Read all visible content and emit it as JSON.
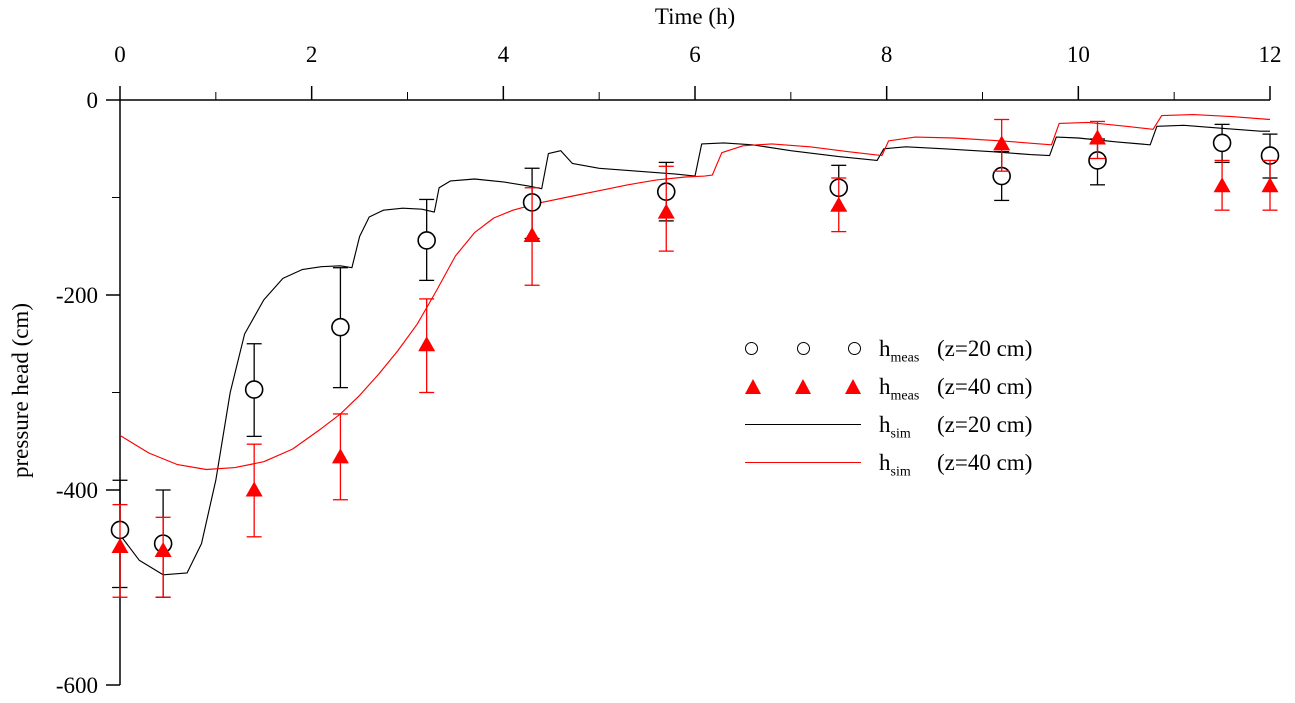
{
  "colors": {
    "black": "#000000",
    "red": "#ff0000",
    "background": "#ffffff"
  },
  "legend": {
    "items": [
      {
        "base": "h",
        "sub": "meas",
        "rest": "(z=20 cm)",
        "marker": "open-circles"
      },
      {
        "base": "h",
        "sub": "meas",
        "rest": "(z=40 cm)",
        "marker": "filled-triangles"
      },
      {
        "base": "h",
        "sub": "sim",
        "rest": "(z=20 cm)",
        "marker": "black-line"
      },
      {
        "base": "h",
        "sub": "sim",
        "rest": "(z=40 cm)",
        "marker": "red-line"
      }
    ]
  },
  "chart_data": {
    "type": "scatter",
    "title": "",
    "xlabel": "Time (h)",
    "ylabel": "pressure head (cm)",
    "xlim": [
      0,
      12
    ],
    "ylim": [
      -600,
      0
    ],
    "x_major_ticks": [
      0,
      2,
      4,
      6,
      8,
      10,
      12
    ],
    "x_minor_ticks": [
      1,
      3,
      5,
      7,
      9,
      11
    ],
    "y_major_ticks": [
      0,
      -200,
      -400,
      -600
    ],
    "y_minor_ticks": [
      -100,
      -300,
      -500
    ],
    "grid": false,
    "legend_position": "center-right",
    "series": [
      {
        "id": "sim-z20",
        "name": "h_sim (z=20 cm)",
        "type": "line",
        "color": "#000000",
        "points": [
          [
            0,
            -446
          ],
          [
            0.2,
            -472
          ],
          [
            0.45,
            -487
          ],
          [
            0.7,
            -485
          ],
          [
            0.85,
            -455
          ],
          [
            1.0,
            -390
          ],
          [
            1.15,
            -300
          ],
          [
            1.3,
            -240
          ],
          [
            1.5,
            -205
          ],
          [
            1.7,
            -183
          ],
          [
            1.9,
            -174
          ],
          [
            2.1,
            -171
          ],
          [
            2.3,
            -170
          ],
          [
            2.42,
            -172
          ],
          [
            2.5,
            -140
          ],
          [
            2.6,
            -120
          ],
          [
            2.75,
            -113
          ],
          [
            2.95,
            -111
          ],
          [
            3.15,
            -112
          ],
          [
            3.28,
            -115
          ],
          [
            3.33,
            -90
          ],
          [
            3.45,
            -83
          ],
          [
            3.7,
            -81
          ],
          [
            4.0,
            -84
          ],
          [
            4.25,
            -88
          ],
          [
            4.4,
            -91
          ],
          [
            4.47,
            -55
          ],
          [
            4.6,
            -52
          ],
          [
            4.72,
            -65
          ],
          [
            5.0,
            -70
          ],
          [
            5.4,
            -73
          ],
          [
            5.8,
            -76
          ],
          [
            6.0,
            -78
          ],
          [
            6.07,
            -45
          ],
          [
            6.3,
            -44
          ],
          [
            6.6,
            -46
          ],
          [
            7.0,
            -52
          ],
          [
            7.5,
            -58
          ],
          [
            7.9,
            -62
          ],
          [
            7.97,
            -50
          ],
          [
            8.2,
            -48
          ],
          [
            8.6,
            -50
          ],
          [
            9.1,
            -53
          ],
          [
            9.5,
            -56
          ],
          [
            9.7,
            -57
          ],
          [
            9.77,
            -38
          ],
          [
            10.0,
            -39
          ],
          [
            10.4,
            -43
          ],
          [
            10.75,
            -46
          ],
          [
            10.82,
            -27
          ],
          [
            11.1,
            -26
          ],
          [
            11.5,
            -29
          ],
          [
            11.9,
            -32
          ],
          [
            12,
            -32
          ]
        ]
      },
      {
        "id": "sim-z40",
        "name": "h_sim (z=40 cm)",
        "type": "line",
        "color": "#ff0000",
        "points": [
          [
            0,
            -344
          ],
          [
            0.3,
            -362
          ],
          [
            0.6,
            -374
          ],
          [
            0.9,
            -379
          ],
          [
            1.2,
            -377
          ],
          [
            1.5,
            -371
          ],
          [
            1.8,
            -358
          ],
          [
            2.1,
            -337
          ],
          [
            2.3,
            -322
          ],
          [
            2.5,
            -303
          ],
          [
            2.7,
            -281
          ],
          [
            2.9,
            -257
          ],
          [
            3.1,
            -230
          ],
          [
            3.3,
            -196
          ],
          [
            3.5,
            -160
          ],
          [
            3.7,
            -136
          ],
          [
            3.9,
            -121
          ],
          [
            4.1,
            -113
          ],
          [
            4.4,
            -105
          ],
          [
            4.7,
            -99
          ],
          [
            5.0,
            -93
          ],
          [
            5.3,
            -87
          ],
          [
            5.6,
            -82
          ],
          [
            5.9,
            -79
          ],
          [
            6.1,
            -78
          ],
          [
            6.18,
            -77
          ],
          [
            6.28,
            -54
          ],
          [
            6.5,
            -47
          ],
          [
            6.8,
            -45
          ],
          [
            7.2,
            -48
          ],
          [
            7.6,
            -53
          ],
          [
            7.95,
            -57
          ],
          [
            8.02,
            -42
          ],
          [
            8.3,
            -38
          ],
          [
            8.7,
            -39
          ],
          [
            9.2,
            -42
          ],
          [
            9.6,
            -45
          ],
          [
            9.72,
            -46
          ],
          [
            9.8,
            -24
          ],
          [
            10.1,
            -23
          ],
          [
            10.5,
            -27
          ],
          [
            10.78,
            -30
          ],
          [
            10.87,
            -16
          ],
          [
            11.2,
            -15
          ],
          [
            11.6,
            -17
          ],
          [
            12,
            -20
          ]
        ]
      },
      {
        "id": "meas-z20",
        "name": "h_meas (z=20 cm)",
        "type": "scatter",
        "marker": "open-circle",
        "color": "#000000",
        "points": [
          {
            "t": 0.0,
            "h": -441,
            "lo": -500,
            "hi": -390
          },
          {
            "t": 0.45,
            "h": -455,
            "lo": -510,
            "hi": -400
          },
          {
            "t": 1.4,
            "h": -297,
            "lo": -345,
            "hi": -250
          },
          {
            "t": 2.3,
            "h": -233,
            "lo": -295,
            "hi": -172
          },
          {
            "t": 3.2,
            "h": -144,
            "lo": -185,
            "hi": -102
          },
          {
            "t": 4.3,
            "h": -105,
            "lo": -142,
            "hi": -70
          },
          {
            "t": 5.7,
            "h": -94,
            "lo": -124,
            "hi": -64
          },
          {
            "t": 7.5,
            "h": -90,
            "lo": -113,
            "hi": -67
          },
          {
            "t": 9.2,
            "h": -78,
            "lo": -103,
            "hi": -53
          },
          {
            "t": 10.2,
            "h": -62,
            "lo": -87,
            "hi": -40
          },
          {
            "t": 11.5,
            "h": -44,
            "lo": -64,
            "hi": -25
          },
          {
            "t": 12.0,
            "h": -57,
            "lo": -80,
            "hi": -35
          }
        ]
      },
      {
        "id": "meas-z40",
        "name": "h_meas (z=40 cm)",
        "type": "scatter",
        "marker": "filled-triangle",
        "color": "#ff0000",
        "points": [
          {
            "t": 0.0,
            "h": -458,
            "lo": -510,
            "hi": -415
          },
          {
            "t": 0.45,
            "h": -462,
            "lo": -510,
            "hi": -428
          },
          {
            "t": 1.4,
            "h": -400,
            "lo": -448,
            "hi": -353
          },
          {
            "t": 2.3,
            "h": -366,
            "lo": -410,
            "hi": -322
          },
          {
            "t": 3.2,
            "h": -251,
            "lo": -300,
            "hi": -204
          },
          {
            "t": 4.3,
            "h": -139,
            "lo": -190,
            "hi": -90
          },
          {
            "t": 5.7,
            "h": -115,
            "lo": -155,
            "hi": -68
          },
          {
            "t": 7.5,
            "h": -108,
            "lo": -135,
            "hi": -80
          },
          {
            "t": 9.2,
            "h": -45,
            "lo": -73,
            "hi": -20
          },
          {
            "t": 10.2,
            "h": -39,
            "lo": -60,
            "hi": -22
          },
          {
            "t": 11.5,
            "h": -88,
            "lo": -113,
            "hi": -62
          },
          {
            "t": 12.0,
            "h": -88,
            "lo": -113,
            "hi": -62
          }
        ]
      }
    ]
  }
}
